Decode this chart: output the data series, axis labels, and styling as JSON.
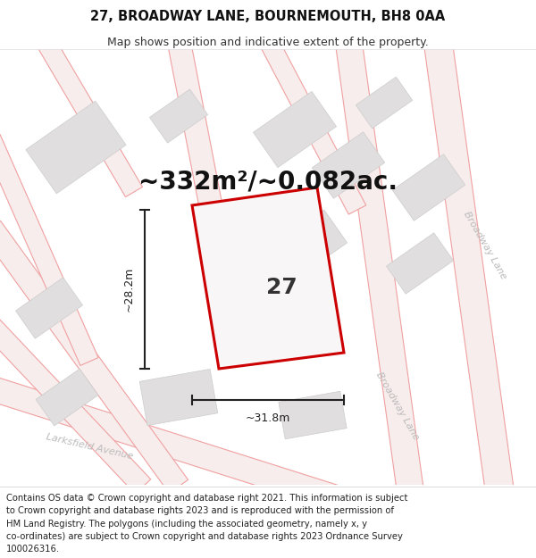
{
  "title": "27, BROADWAY LANE, BOURNEMOUTH, BH8 0AA",
  "subtitle": "Map shows position and indicative extent of the property.",
  "area_text": "~332m²/~0.082ac.",
  "number_label": "27",
  "width_label": "~31.8m",
  "height_label": "~28.2m",
  "footer_text": "Contains OS data © Crown copyright and database right 2021. This information is subject to Crown copyright and database rights 2023 and is reproduced with the permission of HM Land Registry. The polygons (including the associated geometry, namely x, y co-ordinates) are subject to Crown copyright and database rights 2023 Ordnance Survey 100026316.",
  "map_bg": "#ffffff",
  "plot_poly_color": "#cc0000",
  "plot_poly_fill": "#f0eeee",
  "road_line_color": "#f0a0a0",
  "road_fill_color": "#f8eded",
  "block_face_color": "#e0dede",
  "block_edge_color": "#cccccc",
  "title_fontsize": 10.5,
  "subtitle_fontsize": 9,
  "area_fontsize": 20,
  "label_fontsize": 9,
  "num_fontsize": 18,
  "footer_fontsize": 7.2,
  "road_label_color": "#bbbbbb",
  "road_label_fontsize": 8,
  "dim_line_color": "#222222",
  "num_label_color": "#333333"
}
